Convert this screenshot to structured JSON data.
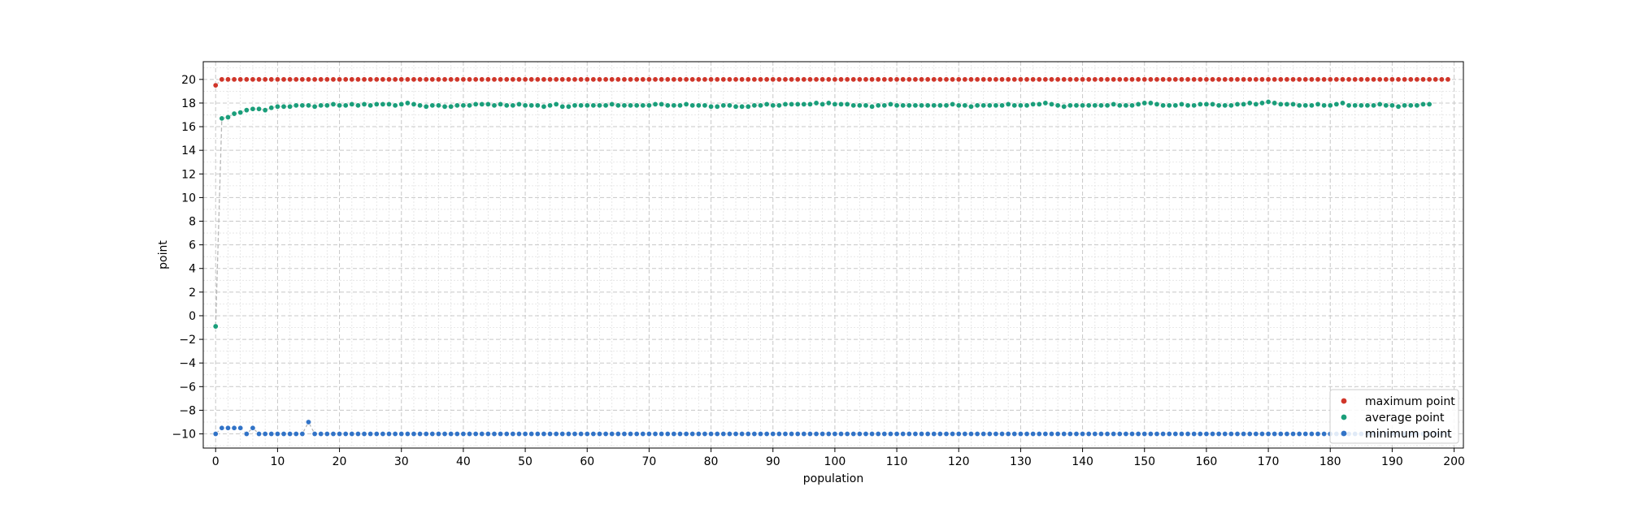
{
  "chart_data": {
    "type": "scatter",
    "title": "",
    "xlabel": "population",
    "ylabel": "point",
    "xlim": [
      -2,
      201.5
    ],
    "ylim": [
      -11.2,
      21.5
    ],
    "xticks": [
      0,
      10,
      20,
      30,
      40,
      50,
      60,
      70,
      80,
      90,
      100,
      110,
      120,
      130,
      140,
      150,
      160,
      170,
      180,
      190,
      200
    ],
    "yticks": [
      -10,
      -8,
      -6,
      -4,
      -2,
      0,
      2,
      4,
      6,
      8,
      10,
      12,
      14,
      16,
      18,
      20
    ],
    "grid": true,
    "legend_position": "bottom-right",
    "series": [
      {
        "name": "maximum point",
        "color": "#d0362a",
        "x_start": 0,
        "x_step": 1,
        "values": [
          19.5,
          20,
          20,
          20,
          20,
          20,
          20,
          20,
          20,
          20,
          20,
          20,
          20,
          20,
          20,
          20,
          20,
          20,
          20,
          20,
          20,
          20,
          20,
          20,
          20,
          20,
          20,
          20,
          20,
          20,
          20,
          20,
          20,
          20,
          20,
          20,
          20,
          20,
          20,
          20,
          20,
          20,
          20,
          20,
          20,
          20,
          20,
          20,
          20,
          20,
          20,
          20,
          20,
          20,
          20,
          20,
          20,
          20,
          20,
          20,
          20,
          20,
          20,
          20,
          20,
          20,
          20,
          20,
          20,
          20,
          20,
          20,
          20,
          20,
          20,
          20,
          20,
          20,
          20,
          20,
          20,
          20,
          20,
          20,
          20,
          20,
          20,
          20,
          20,
          20,
          20,
          20,
          20,
          20,
          20,
          20,
          20,
          20,
          20,
          20,
          20,
          20,
          20,
          20,
          20,
          20,
          20,
          20,
          20,
          20,
          20,
          20,
          20,
          20,
          20,
          20,
          20,
          20,
          20,
          20,
          20,
          20,
          20,
          20,
          20,
          20,
          20,
          20,
          20,
          20,
          20,
          20,
          20,
          20,
          20,
          20,
          20,
          20,
          20,
          20,
          20,
          20,
          20,
          20,
          20,
          20,
          20,
          20,
          20,
          20,
          20,
          20,
          20,
          20,
          20,
          20,
          20,
          20,
          20,
          20,
          20,
          20,
          20,
          20,
          20,
          20,
          20,
          20,
          20,
          20,
          20,
          20,
          20,
          20,
          20,
          20,
          20,
          20,
          20,
          20,
          20,
          20,
          20,
          20,
          20,
          20,
          20,
          20,
          20,
          20,
          20,
          20,
          20,
          20,
          20,
          20,
          20,
          20,
          20,
          20
        ]
      },
      {
        "name": "average point",
        "color": "#1a9e7a",
        "x_start": 0,
        "x_step": 1,
        "values": [
          -0.9,
          16.7,
          16.8,
          17.1,
          17.2,
          17.4,
          17.5,
          17.5,
          17.4,
          17.6,
          17.7,
          17.7,
          17.7,
          17.8,
          17.8,
          17.8,
          17.7,
          17.8,
          17.8,
          17.9,
          17.8,
          17.8,
          17.9,
          17.8,
          17.9,
          17.8,
          17.9,
          17.9,
          17.9,
          17.8,
          17.9,
          18.0,
          17.9,
          17.8,
          17.7,
          17.8,
          17.8,
          17.7,
          17.7,
          17.8,
          17.8,
          17.8,
          17.9,
          17.9,
          17.9,
          17.8,
          17.9,
          17.8,
          17.8,
          17.9,
          17.8,
          17.8,
          17.8,
          17.7,
          17.8,
          17.9,
          17.7,
          17.7,
          17.8,
          17.8,
          17.8,
          17.8,
          17.8,
          17.8,
          17.9,
          17.8,
          17.8,
          17.8,
          17.8,
          17.8,
          17.8,
          17.9,
          17.9,
          17.8,
          17.8,
          17.8,
          17.9,
          17.8,
          17.8,
          17.8,
          17.7,
          17.7,
          17.8,
          17.8,
          17.7,
          17.7,
          17.7,
          17.8,
          17.8,
          17.9,
          17.8,
          17.8,
          17.9,
          17.9,
          17.9,
          17.9,
          17.9,
          18.0,
          17.9,
          18.0,
          17.9,
          17.9,
          17.9,
          17.8,
          17.8,
          17.8,
          17.7,
          17.8,
          17.8,
          17.9,
          17.8,
          17.8,
          17.8,
          17.8,
          17.8,
          17.8,
          17.8,
          17.8,
          17.8,
          17.9,
          17.8,
          17.8,
          17.7,
          17.8,
          17.8,
          17.8,
          17.8,
          17.8,
          17.9,
          17.8,
          17.8,
          17.8,
          17.9,
          17.9,
          18.0,
          17.9,
          17.8,
          17.7,
          17.8,
          17.8,
          17.8,
          17.8,
          17.8,
          17.8,
          17.8,
          17.9,
          17.8,
          17.8,
          17.8,
          17.9,
          18.0,
          18.0,
          17.9,
          17.8,
          17.8,
          17.8,
          17.9,
          17.8,
          17.8,
          17.9,
          17.9,
          17.9,
          17.8,
          17.8,
          17.8,
          17.9,
          17.9,
          18.0,
          17.9,
          18.0,
          18.1,
          18.0,
          17.9,
          17.9,
          17.9,
          17.8,
          17.8,
          17.8,
          17.9,
          17.8,
          17.8,
          17.9,
          18.0,
          17.8,
          17.8,
          17.8,
          17.8,
          17.8,
          17.9,
          17.8,
          17.8,
          17.7,
          17.8,
          17.8,
          17.8,
          17.9,
          17.9
        ]
      },
      {
        "name": "minimum point",
        "color": "#3173c7",
        "x_start": 0,
        "x_step": 1,
        "values": [
          -10,
          -9.5,
          -9.5,
          -9.5,
          -9.5,
          -10,
          -9.5,
          -10,
          -10,
          -10,
          -10,
          -10,
          -10,
          -10,
          -10,
          -9,
          -10,
          -10,
          -10,
          -10,
          -10,
          -10,
          -10,
          -10,
          -10,
          -10,
          -10,
          -10,
          -10,
          -10,
          -10,
          -10,
          -10,
          -10,
          -10,
          -10,
          -10,
          -10,
          -10,
          -10,
          -10,
          -10,
          -10,
          -10,
          -10,
          -10,
          -10,
          -10,
          -10,
          -10,
          -10,
          -10,
          -10,
          -10,
          -10,
          -10,
          -10,
          -10,
          -10,
          -10,
          -10,
          -10,
          -10,
          -10,
          -10,
          -10,
          -10,
          -10,
          -10,
          -10,
          -10,
          -10,
          -10,
          -10,
          -10,
          -10,
          -10,
          -10,
          -10,
          -10,
          -10,
          -10,
          -10,
          -10,
          -10,
          -10,
          -10,
          -10,
          -10,
          -10,
          -10,
          -10,
          -10,
          -10,
          -10,
          -10,
          -10,
          -10,
          -10,
          -10,
          -10,
          -10,
          -10,
          -10,
          -10,
          -10,
          -10,
          -10,
          -10,
          -10,
          -10,
          -10,
          -10,
          -10,
          -10,
          -10,
          -10,
          -10,
          -10,
          -10,
          -10,
          -10,
          -10,
          -10,
          -10,
          -10,
          -10,
          -10,
          -10,
          -10,
          -10,
          -10,
          -10,
          -10,
          -10,
          -10,
          -10,
          -10,
          -10,
          -10,
          -10,
          -10,
          -10,
          -10,
          -10,
          -10,
          -10,
          -10,
          -10,
          -10,
          -10,
          -10,
          -10,
          -10,
          -10,
          -10,
          -10,
          -10,
          -10,
          -10,
          -10,
          -10,
          -10,
          -10,
          -10,
          -10,
          -10,
          -10,
          -10,
          -10,
          -10,
          -10,
          -10,
          -10,
          -10,
          -10,
          -10,
          -10,
          -10,
          -10,
          -10,
          -10,
          -10,
          -10,
          -10,
          -10,
          -10,
          -10,
          -10,
          -10,
          -10,
          -10,
          -10,
          -10,
          -10,
          -10,
          -10,
          -10,
          -10,
          -10
        ]
      }
    ]
  }
}
